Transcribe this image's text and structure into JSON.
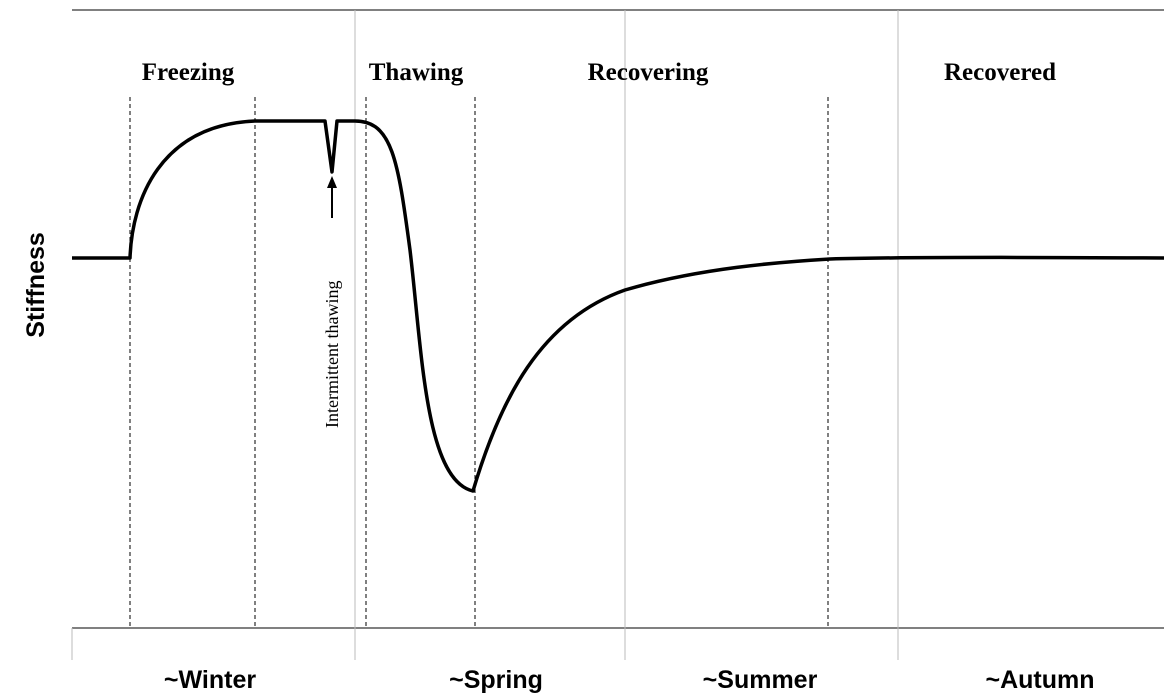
{
  "y_axis_label": "Stiffness",
  "phases": [
    "Freezing",
    "Thawing",
    "Recovering",
    "Recovered"
  ],
  "seasons": [
    "~Winter",
    "~Spring",
    "~Summer",
    "~Autumn"
  ],
  "annotation": "Intermittent thawing"
}
